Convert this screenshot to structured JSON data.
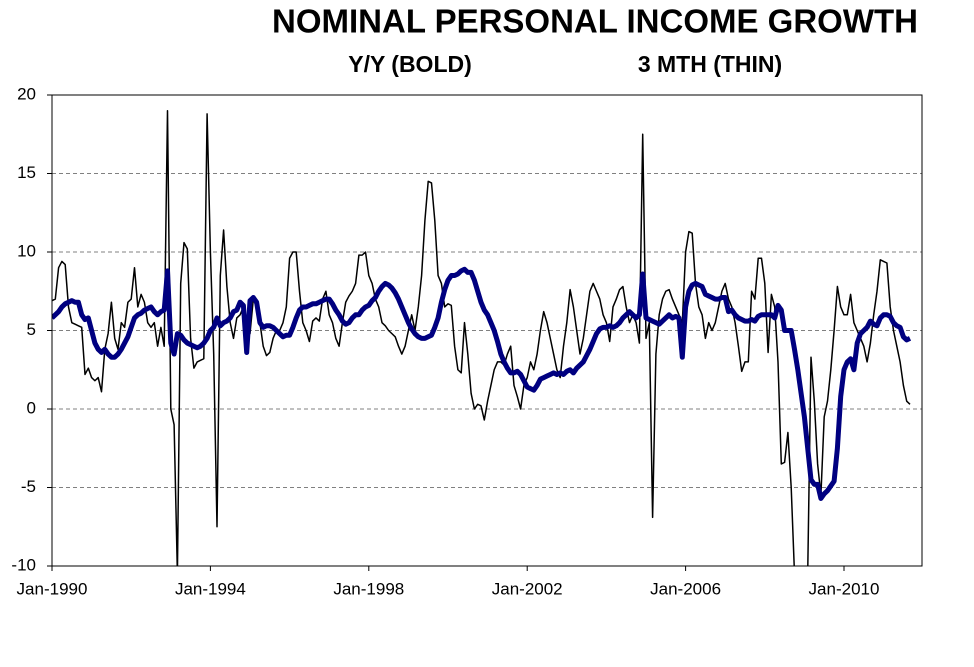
{
  "chart_data": {
    "type": "line",
    "title": "NOMINAL PERSONAL INCOME GROWTH",
    "subtitles": [
      "Y/Y (BOLD)",
      "3 MTH (THIN)"
    ],
    "categories": [
      "Jan-1990",
      "Feb-1990",
      "Mar-1990",
      "Apr-1990",
      "May-1990",
      "Jun-1990",
      "Jul-1990",
      "Aug-1990",
      "Sep-1990",
      "Oct-1990",
      "Nov-1990",
      "Dec-1990",
      "Jan-1991",
      "Feb-1991",
      "Mar-1991",
      "Apr-1991",
      "May-1991",
      "Jun-1991",
      "Jul-1991",
      "Aug-1991",
      "Sep-1991",
      "Oct-1991",
      "Nov-1991",
      "Dec-1991",
      "Jan-1992",
      "Feb-1992",
      "Mar-1992",
      "Apr-1992",
      "May-1992",
      "Jun-1992",
      "Jul-1992",
      "Aug-1992",
      "Sep-1992",
      "Oct-1992",
      "Nov-1992",
      "Dec-1992",
      "Jan-1993",
      "Feb-1993",
      "Mar-1993",
      "Apr-1993",
      "May-1993",
      "Jun-1993",
      "Jul-1993",
      "Aug-1993",
      "Sep-1993",
      "Oct-1993",
      "Nov-1993",
      "Dec-1993",
      "Jan-1994",
      "Feb-1994",
      "Mar-1994",
      "Apr-1994",
      "May-1994",
      "Jun-1994",
      "Jul-1994",
      "Aug-1994",
      "Sep-1994",
      "Oct-1994",
      "Nov-1994",
      "Dec-1994",
      "Jan-1995",
      "Feb-1995",
      "Mar-1995",
      "Apr-1995",
      "May-1995",
      "Jun-1995",
      "Jul-1995",
      "Aug-1995",
      "Sep-1995",
      "Oct-1995",
      "Nov-1995",
      "Dec-1995",
      "Jan-1996",
      "Feb-1996",
      "Mar-1996",
      "Apr-1996",
      "May-1996",
      "Jun-1996",
      "Jul-1996",
      "Aug-1996",
      "Sep-1996",
      "Oct-1996",
      "Nov-1996",
      "Dec-1996",
      "Jan-1997",
      "Feb-1997",
      "Mar-1997",
      "Apr-1997",
      "May-1997",
      "Jun-1997",
      "Jul-1997",
      "Aug-1997",
      "Sep-1997",
      "Oct-1997",
      "Nov-1997",
      "Dec-1997",
      "Jan-1998",
      "Feb-1998",
      "Mar-1998",
      "Apr-1998",
      "May-1998",
      "Jun-1998",
      "Jul-1998",
      "Aug-1998",
      "Sep-1998",
      "Oct-1998",
      "Nov-1998",
      "Dec-1998",
      "Jan-1999",
      "Feb-1999",
      "Mar-1999",
      "Apr-1999",
      "May-1999",
      "Jun-1999",
      "Jul-1999",
      "Aug-1999",
      "Sep-1999",
      "Oct-1999",
      "Nov-1999",
      "Dec-1999",
      "Jan-2000",
      "Feb-2000",
      "Mar-2000",
      "Apr-2000",
      "May-2000",
      "Jun-2000",
      "Jul-2000",
      "Aug-2000",
      "Sep-2000",
      "Oct-2000",
      "Nov-2000",
      "Dec-2000",
      "Jan-2001",
      "Feb-2001",
      "Mar-2001",
      "Apr-2001",
      "May-2001",
      "Jun-2001",
      "Jul-2001",
      "Aug-2001",
      "Sep-2001",
      "Oct-2001",
      "Nov-2001",
      "Dec-2001",
      "Jan-2002",
      "Feb-2002",
      "Mar-2002",
      "Apr-2002",
      "May-2002",
      "Jun-2002",
      "Jul-2002",
      "Aug-2002",
      "Sep-2002",
      "Oct-2002",
      "Nov-2002",
      "Dec-2002",
      "Jan-2003",
      "Feb-2003",
      "Mar-2003",
      "Apr-2003",
      "May-2003",
      "Jun-2003",
      "Jul-2003",
      "Aug-2003",
      "Sep-2003",
      "Oct-2003",
      "Nov-2003",
      "Dec-2003",
      "Jan-2004",
      "Feb-2004",
      "Mar-2004",
      "Apr-2004",
      "May-2004",
      "Jun-2004",
      "Jul-2004",
      "Aug-2004",
      "Sep-2004",
      "Oct-2004",
      "Nov-2004",
      "Dec-2004",
      "Jan-2005",
      "Feb-2005",
      "Mar-2005",
      "Apr-2005",
      "May-2005",
      "Jun-2005",
      "Jul-2005",
      "Aug-2005",
      "Sep-2005",
      "Oct-2005",
      "Nov-2005",
      "Dec-2005",
      "Jan-2006",
      "Feb-2006",
      "Mar-2006",
      "Apr-2006",
      "May-2006",
      "Jun-2006",
      "Jul-2006",
      "Aug-2006",
      "Sep-2006",
      "Oct-2006",
      "Nov-2006",
      "Dec-2006",
      "Jan-2007",
      "Feb-2007",
      "Mar-2007",
      "Apr-2007",
      "May-2007",
      "Jun-2007",
      "Jul-2007",
      "Aug-2007",
      "Sep-2007",
      "Oct-2007",
      "Nov-2007",
      "Dec-2007",
      "Jan-2008",
      "Feb-2008",
      "Mar-2008",
      "Apr-2008",
      "May-2008",
      "Jun-2008",
      "Jul-2008",
      "Aug-2008",
      "Sep-2008",
      "Oct-2008",
      "Nov-2008",
      "Dec-2008",
      "Jan-2009",
      "Feb-2009",
      "Mar-2009",
      "Apr-2009",
      "May-2009",
      "Jun-2009",
      "Jul-2009",
      "Aug-2009",
      "Sep-2009",
      "Oct-2009",
      "Nov-2009",
      "Dec-2009",
      "Jan-2010",
      "Feb-2010",
      "Mar-2010",
      "Apr-2010",
      "May-2010",
      "Jun-2010",
      "Jul-2010",
      "Aug-2010",
      "Sep-2010",
      "Oct-2010",
      "Nov-2010",
      "Dec-2010",
      "Jan-2011",
      "Feb-2011",
      "Mar-2011",
      "Apr-2011",
      "May-2011",
      "Jun-2011",
      "Jul-2011",
      "Aug-2011",
      "Sep-2011"
    ],
    "xticks": [
      "Jan-1990",
      "Jan-1994",
      "Jan-1998",
      "Jan-2002",
      "Jan-2006",
      "Jan-2010"
    ],
    "ylim": [
      -10,
      20
    ],
    "yticks": [
      -10,
      -5,
      0,
      5,
      10,
      15,
      20
    ],
    "grid": true,
    "series": [
      {
        "color": "#000000",
        "width": 1.5,
        "values": [
          6.9,
          7.0,
          9.0,
          9.4,
          9.2,
          6.5,
          5.5,
          5.4,
          5.3,
          5.2,
          2.2,
          2.6,
          2.0,
          1.8,
          2.0,
          1.1,
          3.8,
          4.8,
          6.8,
          4.5,
          3.8,
          5.5,
          5.2,
          6.8,
          7.0,
          9.0,
          6.5,
          7.3,
          6.8,
          5.5,
          5.2,
          5.5,
          4.0,
          5.2,
          4.0,
          19.0,
          0,
          -1.0,
          -10.5,
          8.0,
          10.6,
          10.2,
          4.5,
          2.6,
          3.0,
          3.1,
          3.2,
          18.8,
          10.0,
          3.5,
          -7.5,
          8.5,
          11.4,
          7.8,
          5.5,
          4.5,
          5.8,
          6.0,
          6.5,
          5.2,
          4.8,
          7.0,
          6.5,
          5.5,
          4.0,
          3.4,
          3.6,
          4.5,
          5.0,
          5.0,
          5.5,
          6.5,
          9.6,
          10.0,
          10.0,
          7.5,
          5.5,
          5.0,
          4.3,
          5.6,
          5.8,
          5.6,
          7.0,
          7.5,
          6.0,
          5.5,
          4.5,
          4.0,
          5.5,
          6.8,
          7.2,
          7.5,
          8.0,
          9.8,
          9.8,
          10.0,
          8.5,
          8.0,
          7.0,
          6.5,
          5.5,
          5.3,
          5.0,
          4.8,
          4.6,
          4.0,
          3.5,
          4.0,
          5.0,
          6.0,
          5.0,
          6.5,
          8.5,
          12.0,
          14.5,
          14.4,
          12.0,
          8.5,
          8.0,
          6.5,
          6.7,
          6.6,
          4.0,
          2.5,
          2.3,
          5.5,
          3.5,
          1.0,
          0,
          0.3,
          0.2,
          -0.7,
          0.5,
          1.5,
          2.5,
          3.0,
          3.0,
          2.8,
          3.5,
          4.0,
          1.5,
          0.8,
          0,
          1.5,
          2.0,
          3.0,
          2.5,
          3.5,
          5.0,
          6.2,
          5.5,
          4.5,
          3.5,
          2.5,
          2.0,
          4.0,
          5.5,
          7.6,
          6.5,
          5.0,
          3.5,
          4.5,
          6.0,
          7.5,
          8.0,
          7.5,
          7.0,
          6.0,
          5.5,
          4.3,
          6.5,
          7.0,
          7.6,
          7.8,
          6.5,
          5.5,
          6.0,
          5.5,
          4.2,
          17.5,
          4.5,
          5.5,
          -6.9,
          3.5,
          6.0,
          7.0,
          7.5,
          7.6,
          7.0,
          6.5,
          6.0,
          5.5,
          10.0,
          11.3,
          11.2,
          8.0,
          6.5,
          6.0,
          4.5,
          5.5,
          5.0,
          5.5,
          6.5,
          7.5,
          8.0,
          7.0,
          6.5,
          5.5,
          4.0,
          2.4,
          3.0,
          3.0,
          7.5,
          7.0,
          9.6,
          9.6,
          8.0,
          3.6,
          7.3,
          6.5,
          3.0,
          -3.5,
          -3.4,
          -1.5,
          -5.0,
          -10.5,
          -10.5,
          -10.5,
          -10.5,
          -10.5,
          3.3,
          0.5,
          -3.5,
          -5.5,
          -0.5,
          0.5,
          2.5,
          5.0,
          7.8,
          6.5,
          6.0,
          6.0,
          7.3,
          5.5,
          5.0,
          4.5,
          4.0,
          3.0,
          4.2,
          6.0,
          7.5,
          9.5,
          9.4,
          9.3,
          6.5,
          5.0,
          4.0,
          3.0,
          1.5,
          0.5,
          0.3
        ]
      },
      {
        "color": "#000080",
        "width": 5,
        "values": [
          5.8,
          6.0,
          6.2,
          6.5,
          6.7,
          6.8,
          6.9,
          6.8,
          6.8,
          6.0,
          5.7,
          5.8,
          5.0,
          4.2,
          3.8,
          3.6,
          3.8,
          3.5,
          3.3,
          3.3,
          3.5,
          3.8,
          4.2,
          4.6,
          5.2,
          5.8,
          6.0,
          6.1,
          6.3,
          6.4,
          6.5,
          6.2,
          6.0,
          6.2,
          6.3,
          8.8,
          4.2,
          3.5,
          4.8,
          4.7,
          4.4,
          4.2,
          4.1,
          4.0,
          3.9,
          4.0,
          4.2,
          4.5,
          5.0,
          5.2,
          5.8,
          5.3,
          5.5,
          5.6,
          5.8,
          6.2,
          6.3,
          6.8,
          6.6,
          3.6,
          6.9,
          7.1,
          6.8,
          5.5,
          5.2,
          5.3,
          5.3,
          5.2,
          5.0,
          4.8,
          4.6,
          4.7,
          4.7,
          5.2,
          5.8,
          6.3,
          6.5,
          6.5,
          6.6,
          6.7,
          6.7,
          6.8,
          6.9,
          7.0,
          7.0,
          6.7,
          6.3,
          6.0,
          5.6,
          5.4,
          5.5,
          5.8,
          6.0,
          6.0,
          6.3,
          6.5,
          6.6,
          6.9,
          7.1,
          7.5,
          7.8,
          8.0,
          7.9,
          7.7,
          7.4,
          7.0,
          6.5,
          6.0,
          5.5,
          5.1,
          4.8,
          4.6,
          4.5,
          4.5,
          4.6,
          4.7,
          5.2,
          5.8,
          6.8,
          7.6,
          8.2,
          8.5,
          8.5,
          8.6,
          8.8,
          8.9,
          8.7,
          8.7,
          8.2,
          7.5,
          6.8,
          6.3,
          6.0,
          5.5,
          5.0,
          4.3,
          3.5,
          3.0,
          2.6,
          2.3,
          2.3,
          2.4,
          2.2,
          1.8,
          1.4,
          1.3,
          1.2,
          1.5,
          1.9,
          2.0,
          2.1,
          2.2,
          2.3,
          2.2,
          2.3,
          2.2,
          2.4,
          2.5,
          2.3,
          2.6,
          2.8,
          3.0,
          3.4,
          3.8,
          4.3,
          4.8,
          5.1,
          5.2,
          5.2,
          5.3,
          5.2,
          5.3,
          5.5,
          5.8,
          6.0,
          6.2,
          6.0,
          5.8,
          6.0,
          8.6,
          5.8,
          5.7,
          5.6,
          5.5,
          5.4,
          5.6,
          5.8,
          6.0,
          5.8,
          5.9,
          5.8,
          3.3,
          6.5,
          7.5,
          7.9,
          8.0,
          7.9,
          7.8,
          7.3,
          7.2,
          7.1,
          7.0,
          7.0,
          7.1,
          7.1,
          6.2,
          6.3,
          6.0,
          5.8,
          5.7,
          5.6,
          5.6,
          5.7,
          5.6,
          5.9,
          6.0,
          6.0,
          6.0,
          6.0,
          5.8,
          6.6,
          6.3,
          5.0,
          5.0,
          5.0,
          3.8,
          2.5,
          1.0,
          -0.5,
          -2.5,
          -4.5,
          -4.8,
          -4.8,
          -5.7,
          -5.4,
          -5.2,
          -4.9,
          -4.6,
          -2.5,
          0.8,
          2.5,
          3.0,
          3.2,
          2.5,
          4.2,
          4.8,
          5.0,
          5.2,
          5.6,
          5.4,
          5.3,
          5.8,
          6.0,
          6.0,
          5.9,
          5.5,
          5.3,
          5.2,
          4.6,
          4.4,
          4.5
        ]
      }
    ]
  }
}
